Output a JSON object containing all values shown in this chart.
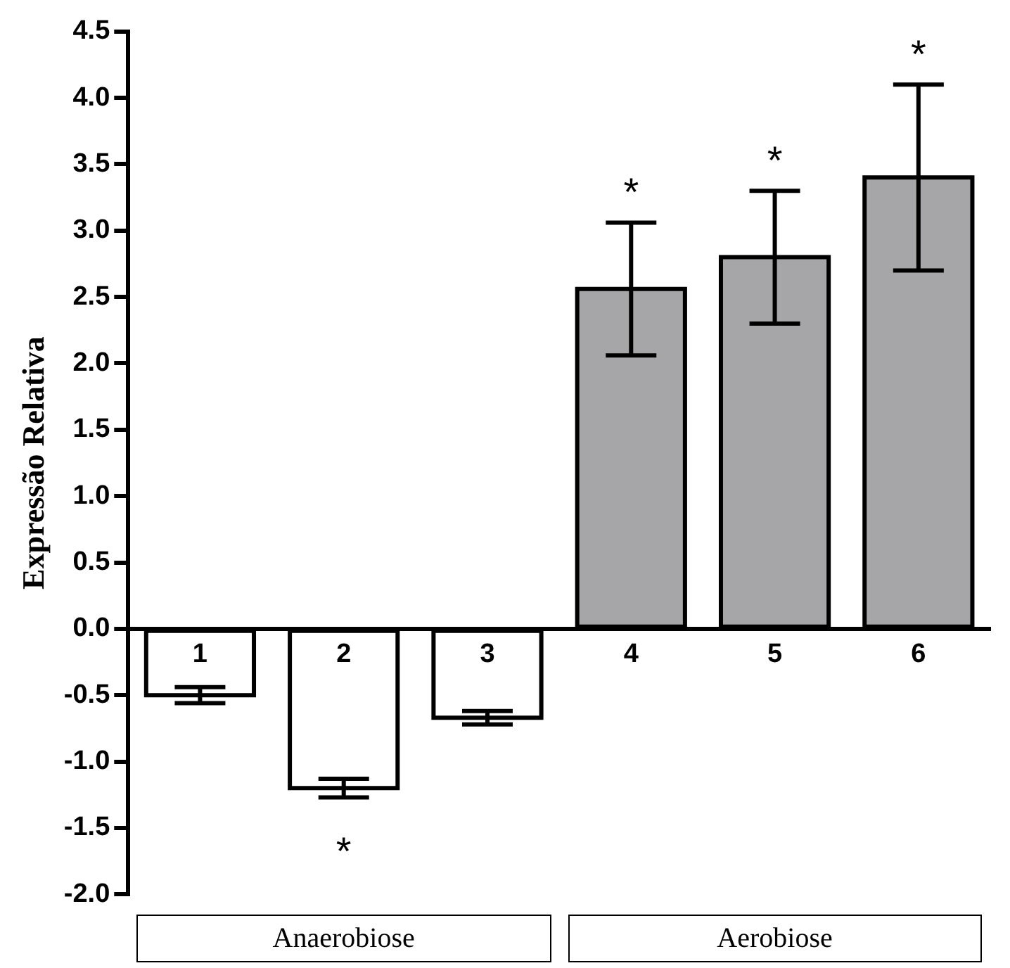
{
  "chart_data": {
    "type": "bar",
    "ylabel": "Expressão Relativa",
    "categories": [
      "1",
      "2",
      "3",
      "4",
      "5",
      "6"
    ],
    "values": [
      -0.5,
      -1.2,
      -0.67,
      2.56,
      2.8,
      3.4
    ],
    "colors": [
      "#ffffff",
      "#ffffff",
      "#ffffff",
      "#a6a6a8",
      "#a6a6a8",
      "#a6a6a8"
    ],
    "errors": [
      0.06,
      0.07,
      0.05,
      0.5,
      0.5,
      0.7
    ],
    "ylim": [
      -2.0,
      4.5
    ],
    "yticks": [
      {
        "value": -2,
        "label": "-2.0"
      },
      {
        "value": -1.5,
        "label": "-1.5"
      },
      {
        "value": -1,
        "label": "-1.0"
      },
      {
        "value": -0.5,
        "label": "-0.5"
      },
      {
        "value": 0,
        "label": "0.0"
      },
      {
        "value": 0.5,
        "label": "0.5"
      },
      {
        "value": 1,
        "label": "1.0"
      },
      {
        "value": 1.5,
        "label": "1.5"
      },
      {
        "value": 2,
        "label": "2.0"
      },
      {
        "value": 2.5,
        "label": "2.5"
      },
      {
        "value": 3,
        "label": "3.0"
      },
      {
        "value": 3.5,
        "label": "3.5"
      },
      {
        "value": 4,
        "label": "4.0"
      },
      {
        "value": 4.5,
        "label": "4.5"
      }
    ],
    "grid": false,
    "legend": false,
    "annotations": [
      {
        "text": "*",
        "x": "2",
        "y": -1.2
      },
      {
        "text": "*",
        "x": "4",
        "y": 2.56
      },
      {
        "text": "*",
        "x": "5",
        "y": 2.8
      },
      {
        "text": "*",
        "x": "6",
        "y": 3.4
      },
      "Anaerobiose",
      "Aerobiose"
    ]
  }
}
